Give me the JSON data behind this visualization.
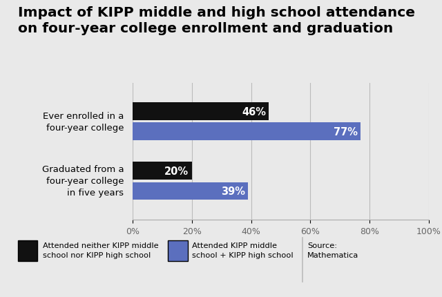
{
  "title": "Impact of KIPP middle and high school attendance\non four-year college enrollment and graduation",
  "categories": [
    "Ever enrolled in a\nfour-year college",
    "Graduated from a\nfour-year college\nin five years"
  ],
  "values_black": [
    46,
    20
  ],
  "values_blue": [
    77,
    39
  ],
  "color_black": "#111111",
  "color_blue": "#5b6fbe",
  "xlim": [
    0,
    100
  ],
  "xticks": [
    0,
    20,
    40,
    60,
    80,
    100
  ],
  "xtick_labels": [
    "0%",
    "20%",
    "40%",
    "60%",
    "80%",
    "100%"
  ],
  "bar_height": 0.3,
  "bar_gap": 0.04,
  "label_fontsize": 10.5,
  "title_fontsize": 14.5,
  "tick_fontsize": 9,
  "cat_fontsize": 9.5,
  "legend1_text": "Attended neither KIPP middle\nschool nor KIPP high school",
  "legend2_text": "Attended KIPP middle\nschool + KIPP high school",
  "source_text": "Source:\nMathematica",
  "background_color": "#e9e9e9"
}
